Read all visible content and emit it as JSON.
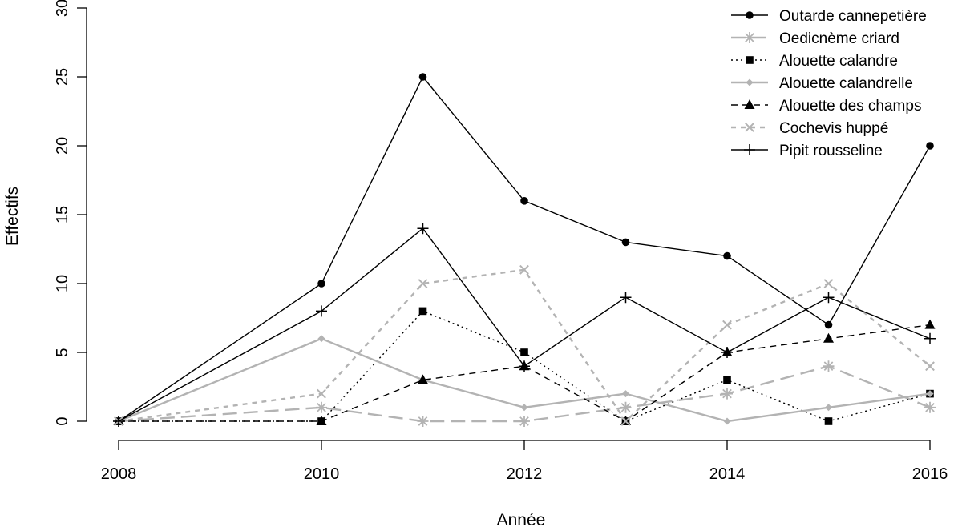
{
  "chart_data": {
    "type": "line",
    "title": "",
    "xlabel": "Année",
    "ylabel": "Effectifs",
    "xlim": [
      2008,
      2016
    ],
    "ylim": [
      0,
      30
    ],
    "x": [
      2008,
      2010,
      2011,
      2012,
      2013,
      2014,
      2015,
      2016
    ],
    "x_ticks": [
      "2008",
      "2010",
      "2012",
      "2014",
      "2016"
    ],
    "y_ticks": [
      "0",
      "5",
      "10",
      "15",
      "20",
      "25",
      "30"
    ],
    "legend_position": "top-right",
    "series": [
      {
        "name": "Outarde cannepetière",
        "values": [
          0,
          10,
          25,
          16,
          13,
          12,
          7,
          20
        ],
        "color": "#000000",
        "dash": "solid",
        "marker": "circle"
      },
      {
        "name": "Oedicnème criard",
        "values": [
          0,
          1,
          0,
          0,
          1,
          2,
          4,
          1
        ],
        "color": "#b3b3b3",
        "dash": "longdash",
        "marker": "asterisk"
      },
      {
        "name": "Alouette calandre",
        "values": [
          0,
          0,
          8,
          5,
          0,
          3,
          0,
          2
        ],
        "color": "#000000",
        "dash": "dotted",
        "marker": "square"
      },
      {
        "name": "Alouette calandrelle",
        "values": [
          0,
          6,
          3,
          1,
          2,
          0,
          1,
          2
        ],
        "color": "#b3b3b3",
        "dash": "solid",
        "marker": "diamond"
      },
      {
        "name": "Alouette des champs",
        "values": [
          0,
          0,
          3,
          4,
          0,
          5,
          6,
          7
        ],
        "color": "#000000",
        "dash": "dashed",
        "marker": "triangle"
      },
      {
        "name": "Cochevis huppé",
        "values": [
          0,
          2,
          10,
          11,
          0,
          7,
          10,
          4
        ],
        "color": "#b3b3b3",
        "dash": "shortdash",
        "marker": "cross"
      },
      {
        "name": "Pipit rousseline",
        "values": [
          0,
          8,
          14,
          4,
          9,
          5,
          9,
          6
        ],
        "color": "#000000",
        "dash": "solid",
        "marker": "plus"
      }
    ]
  }
}
